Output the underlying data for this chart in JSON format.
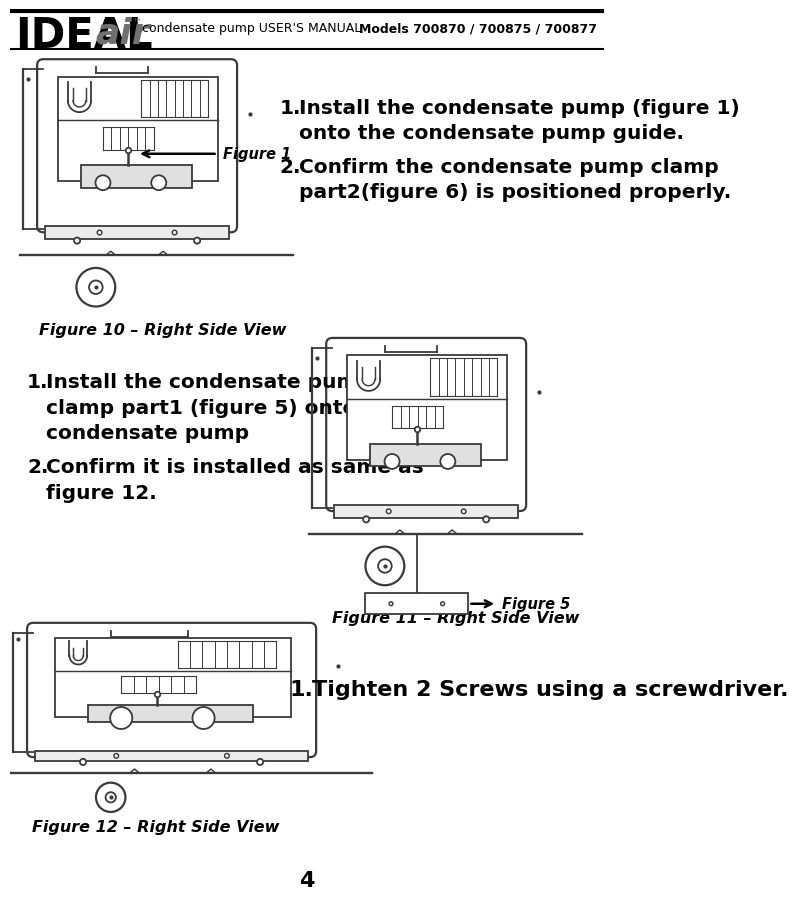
{
  "page_title_left": "condensate pump USER'S MANUAL",
  "page_title_right": "Models 700870 / 700875 / 700877",
  "bg_color": "#ffffff",
  "section1_caption": "Figure 10 – Right Side View",
  "section2_caption": "Figure 11 – Right Side View",
  "section3_caption": "Figure 12 – Right Side View",
  "page_number": "4",
  "s1_line1": "Install the condensate pump (figure 1)",
  "s1_line1b": "onto the condensate pump guide.",
  "s1_line2": "Confirm the condensate pump clamp",
  "s1_line2b": "part2(figure 6) is positioned properly.",
  "s2_line1": "Install the condensate pump",
  "s2_line1b": "clamp part1 (figure 5) onto the",
  "s2_line1c": "condensate pump",
  "s2_line2": "Confirm it is installed as same as",
  "s2_line2b": "figure 12.",
  "s3_line1": "Tighten 2 Screws using a screwdriver.",
  "fig1_label": "Figure 1",
  "fig5_label": "Figure 5",
  "draw_color": "#3a3a3a"
}
